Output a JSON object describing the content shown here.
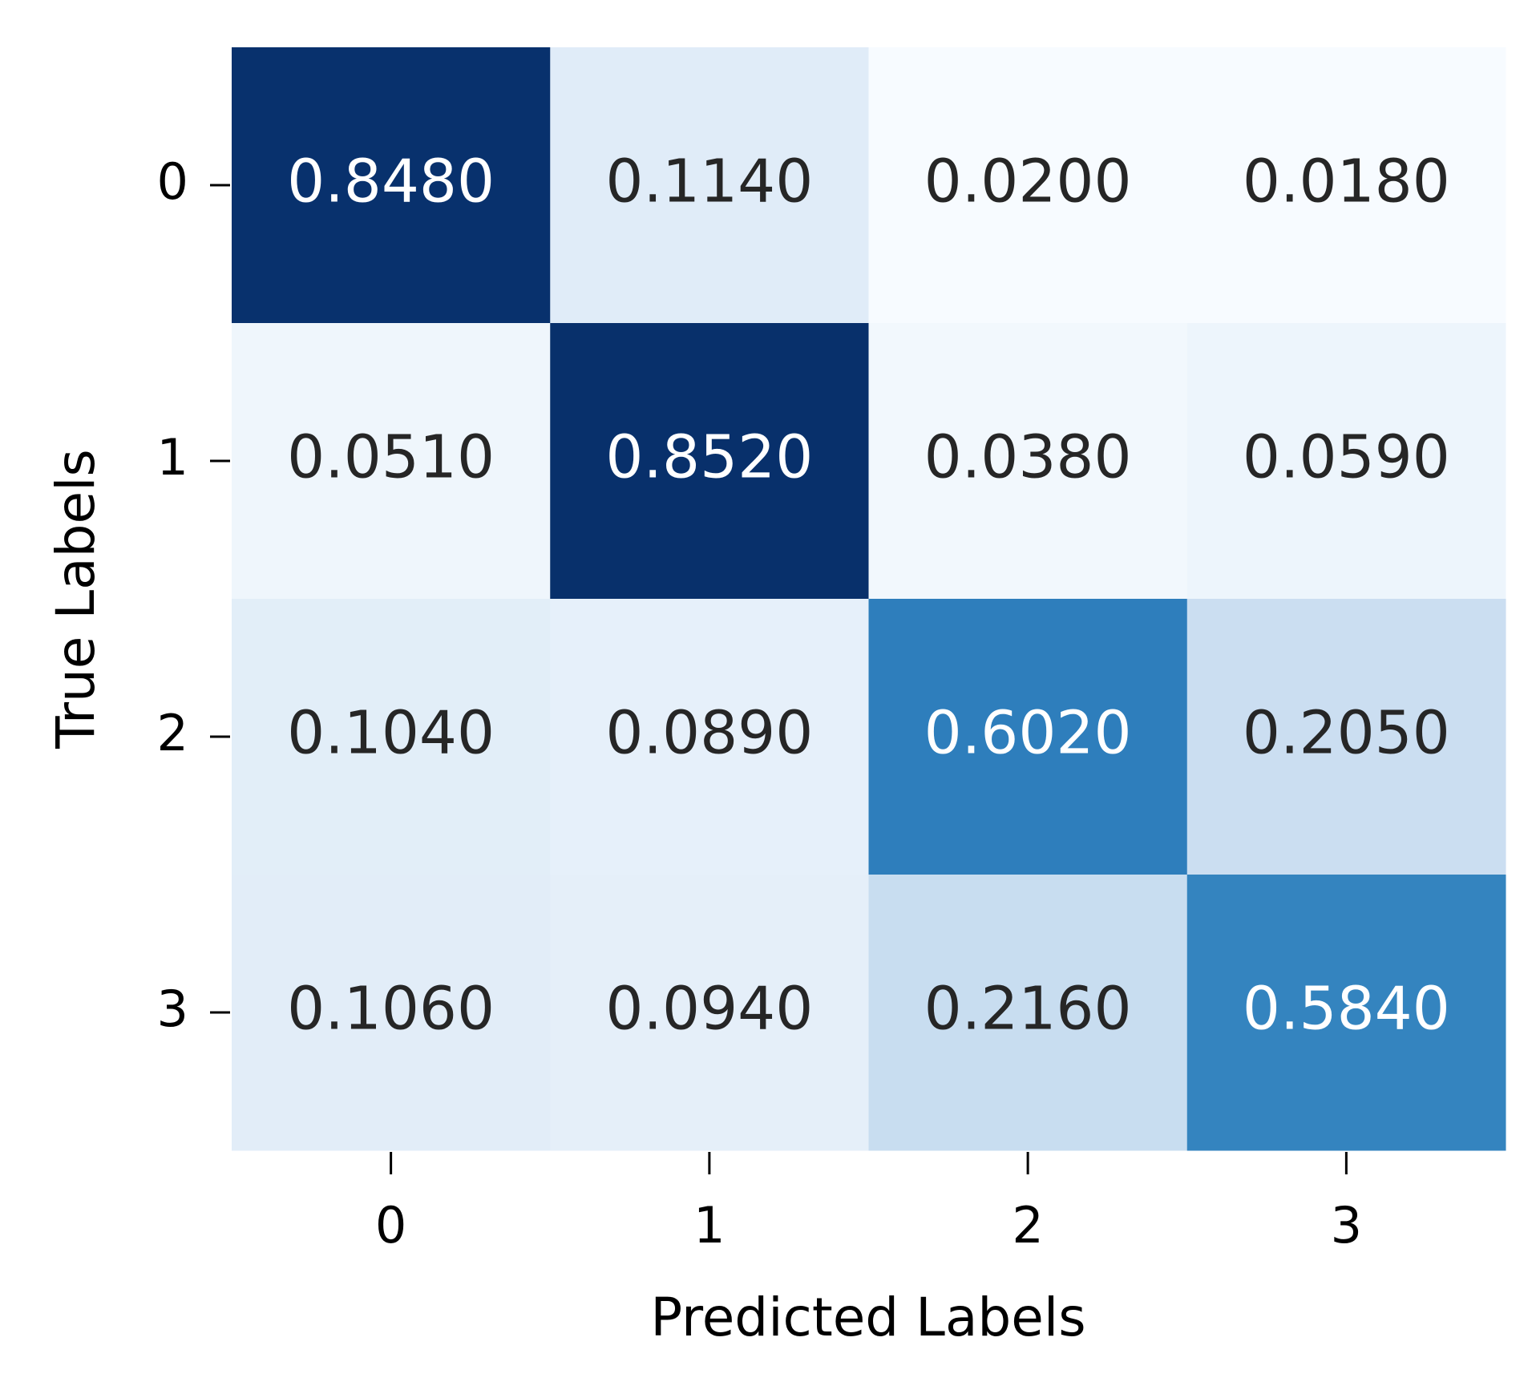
{
  "chart_data": {
    "type": "heatmap",
    "x_label": "Predicted Labels",
    "y_label": "True Labels",
    "x_categories": [
      "0",
      "1",
      "2",
      "3"
    ],
    "y_categories": [
      "0",
      "1",
      "2",
      "3"
    ],
    "colormap": "Blues",
    "values": [
      [
        0.848,
        0.114,
        0.02,
        0.018
      ],
      [
        0.051,
        0.852,
        0.038,
        0.059
      ],
      [
        0.104,
        0.089,
        0.602,
        0.205
      ],
      [
        0.106,
        0.094,
        0.216,
        0.584
      ]
    ],
    "value_labels": [
      [
        "0.8480",
        "0.1140",
        "0.0200",
        "0.0180"
      ],
      [
        "0.0510",
        "0.8520",
        "0.0380",
        "0.0590"
      ],
      [
        "0.1040",
        "0.0890",
        "0.6020",
        "0.2050"
      ],
      [
        "0.1060",
        "0.0940",
        "0.2160",
        "0.5840"
      ]
    ]
  }
}
